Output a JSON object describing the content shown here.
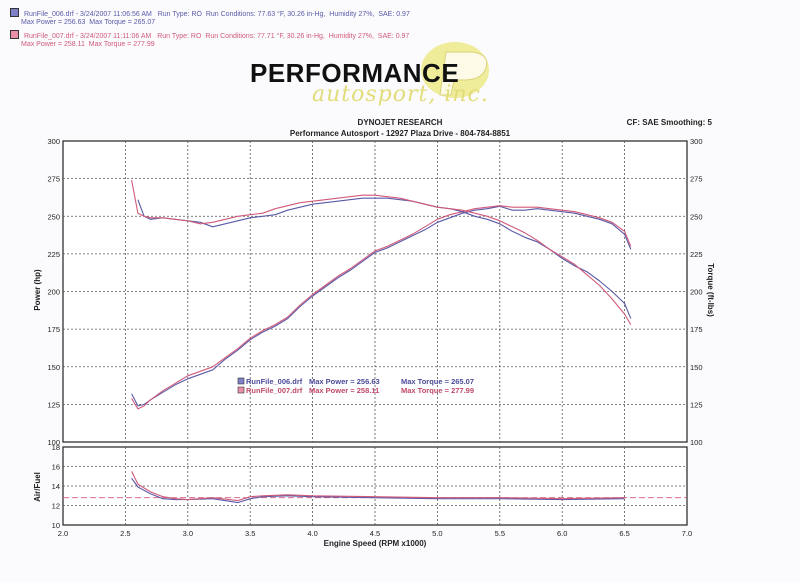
{
  "runs": [
    {
      "file": "RunFile_006.drf",
      "date": "3/24/2007 11:06:56 AM",
      "run_type": "Run Type: RO",
      "conditions": "Run Conditions: 77.63 °F, 30.26 in-Hg,",
      "humidity": "Humidity  27%,",
      "sae": "SAE: 0.97",
      "max_power_line": "Max Power = 256.63",
      "max_torque_line": "Max Torque = 265.07",
      "color": "#5a5aa8"
    },
    {
      "file": "RunFile_007.drf",
      "date": "3/24/2007 11:11:06 AM",
      "run_type": "Run Type: RO",
      "conditions": "Run Conditions: 77.71 °F, 30.26 in-Hg,",
      "humidity": "Humidity  27%,",
      "sae": "SAE: 0.97",
      "max_power_line": "Max Power = 258.11",
      "max_torque_line": "Max Torque = 277.99",
      "color": "#d05a7a"
    }
  ],
  "logo": {
    "main": "PERFORMANCE",
    "sub": "autosport, inc."
  },
  "header": {
    "research": "DYNOJET RESEARCH",
    "company": "Performance Autosport - 12927 Plaza Drive - 804-784-8851",
    "settings": "CF: SAE  Smoothing: 5"
  },
  "chart_data": [
    {
      "type": "line",
      "xlabel": "Engine Speed (RPM x1000)",
      "ylabel": "Power (hp)",
      "y2label": "Torque (ft-lbs)",
      "xlim": [
        2.0,
        7.0
      ],
      "ylim": [
        100,
        300
      ],
      "y2lim": [
        100,
        300
      ],
      "x_ticks": [
        "2.0",
        "2.5",
        "3.0",
        "3.5",
        "4.0",
        "4.5",
        "5.0",
        "5.5",
        "6.0",
        "6.5",
        "7.0"
      ],
      "y_ticks": [
        "100",
        "125",
        "150",
        "175",
        "200",
        "225",
        "250",
        "275",
        "300"
      ],
      "grid": true,
      "legend": [
        {
          "file": "RunFile_006.drf",
          "power": "Max Power = 256.63",
          "torque": "Max Torque = 265.07"
        },
        {
          "file": "RunFile_007.drf",
          "power": "Max Power = 258.11",
          "torque": "Max Torque = 277.99"
        }
      ],
      "series": [
        {
          "name": "RunFile_006.drf",
          "measure": "power",
          "color": "#5a5aa8",
          "x": [
            2.55,
            2.6,
            2.65,
            2.7,
            2.8,
            2.9,
            3.0,
            3.1,
            3.2,
            3.3,
            3.4,
            3.5,
            3.6,
            3.7,
            3.8,
            3.9,
            4.0,
            4.1,
            4.2,
            4.3,
            4.4,
            4.5,
            4.6,
            4.7,
            4.8,
            4.9,
            5.0,
            5.1,
            5.2,
            5.3,
            5.4,
            5.5,
            5.6,
            5.7,
            5.8,
            5.9,
            6.0,
            6.1,
            6.2,
            6.3,
            6.4,
            6.5,
            6.55
          ],
          "y": [
            132,
            124,
            125,
            128,
            133,
            138,
            142,
            145,
            148,
            155,
            161,
            168,
            173,
            177,
            182,
            190,
            197,
            203,
            209,
            214,
            220,
            226,
            229,
            233,
            237,
            241,
            246,
            249,
            252,
            254,
            255,
            256.6,
            254,
            254,
            255,
            254,
            253,
            252,
            250,
            248,
            245,
            238,
            228
          ]
        },
        {
          "name": "RunFile_007.drf",
          "measure": "power",
          "color": "#d05a7a",
          "x": [
            2.55,
            2.6,
            2.65,
            2.7,
            2.8,
            2.9,
            3.0,
            3.1,
            3.2,
            3.3,
            3.4,
            3.5,
            3.6,
            3.7,
            3.8,
            3.9,
            4.0,
            4.1,
            4.2,
            4.3,
            4.4,
            4.5,
            4.6,
            4.7,
            4.8,
            4.9,
            5.0,
            5.1,
            5.2,
            5.3,
            5.4,
            5.5,
            5.6,
            5.7,
            5.8,
            5.9,
            6.0,
            6.1,
            6.2,
            6.3,
            6.4,
            6.5,
            6.55
          ],
          "y": [
            129,
            122,
            124,
            128,
            134,
            139,
            144,
            147,
            150,
            156,
            162,
            169,
            174,
            178,
            183,
            191,
            198,
            204,
            210,
            215,
            221,
            227,
            230,
            234,
            238,
            243,
            248,
            251,
            253,
            255,
            256,
            257,
            256,
            256,
            256,
            255,
            254,
            253,
            251,
            249,
            246,
            240,
            230
          ]
        },
        {
          "name": "RunFile_006.drf",
          "measure": "torque",
          "color": "#5a5aa8",
          "x": [
            2.6,
            2.65,
            2.7,
            2.8,
            2.9,
            3.0,
            3.1,
            3.2,
            3.3,
            3.4,
            3.5,
            3.6,
            3.7,
            3.8,
            3.9,
            4.0,
            4.1,
            4.2,
            4.3,
            4.4,
            4.5,
            4.6,
            4.7,
            4.8,
            4.9,
            5.0,
            5.1,
            5.2,
            5.3,
            5.4,
            5.5,
            5.6,
            5.7,
            5.8,
            5.9,
            6.0,
            6.1,
            6.2,
            6.3,
            6.4,
            6.5,
            6.55
          ],
          "y": [
            261,
            250,
            248,
            249,
            248,
            247,
            246,
            243,
            245,
            247,
            249,
            250,
            251,
            254,
            256,
            258,
            259,
            260,
            261,
            262,
            262,
            262,
            261,
            260,
            258,
            256,
            255,
            253,
            250,
            248,
            245,
            240,
            236,
            233,
            228,
            222,
            217,
            213,
            207,
            200,
            192,
            182
          ]
        },
        {
          "name": "RunFile_007.drf",
          "measure": "torque",
          "color": "#d05a7a",
          "x": [
            2.55,
            2.6,
            2.65,
            2.7,
            2.8,
            2.9,
            3.0,
            3.1,
            3.2,
            3.3,
            3.4,
            3.5,
            3.6,
            3.7,
            3.8,
            3.9,
            4.0,
            4.1,
            4.2,
            4.3,
            4.4,
            4.5,
            4.6,
            4.7,
            4.8,
            4.9,
            5.0,
            5.1,
            5.2,
            5.3,
            5.4,
            5.5,
            5.6,
            5.7,
            5.8,
            5.9,
            6.0,
            6.1,
            6.2,
            6.3,
            6.4,
            6.5,
            6.55
          ],
          "y": [
            274,
            252,
            250,
            249,
            249,
            248,
            247,
            245,
            246,
            248,
            250,
            251,
            252,
            255,
            257,
            259,
            260,
            261,
            262,
            263,
            264,
            264,
            263,
            262,
            260,
            258,
            256,
            255,
            254,
            252,
            250,
            247,
            243,
            239,
            234,
            228,
            223,
            218,
            211,
            204,
            195,
            185,
            178
          ]
        }
      ]
    },
    {
      "type": "line",
      "ylabel": "Air/Fuel",
      "xlim": [
        2.0,
        7.0
      ],
      "ylim": [
        10,
        18
      ],
      "y_ticks": [
        "10",
        "12",
        "14",
        "16",
        "18"
      ],
      "grid": true,
      "reference_line": 12.8,
      "series": [
        {
          "name": "RunFile_006.drf",
          "color": "#5a5aa8",
          "x": [
            2.55,
            2.6,
            2.7,
            2.8,
            2.9,
            3.0,
            3.2,
            3.4,
            3.5,
            3.6,
            3.8,
            4.0,
            4.5,
            5.0,
            5.5,
            6.0,
            6.5
          ],
          "y": [
            14.8,
            13.9,
            13.2,
            12.7,
            12.6,
            12.6,
            12.7,
            12.3,
            12.7,
            12.9,
            13.0,
            12.9,
            12.8,
            12.7,
            12.7,
            12.6,
            12.7
          ]
        },
        {
          "name": "RunFile_007.drf",
          "color": "#d05a7a",
          "x": [
            2.55,
            2.6,
            2.7,
            2.8,
            2.9,
            3.0,
            3.2,
            3.4,
            3.5,
            3.6,
            3.8,
            4.0,
            4.5,
            5.0,
            5.5,
            6.0,
            6.5
          ],
          "y": [
            15.5,
            14.2,
            13.4,
            12.9,
            12.7,
            12.6,
            12.8,
            12.5,
            12.9,
            13.0,
            13.1,
            13.0,
            12.9,
            12.8,
            12.8,
            12.7,
            12.8
          ]
        }
      ]
    }
  ]
}
